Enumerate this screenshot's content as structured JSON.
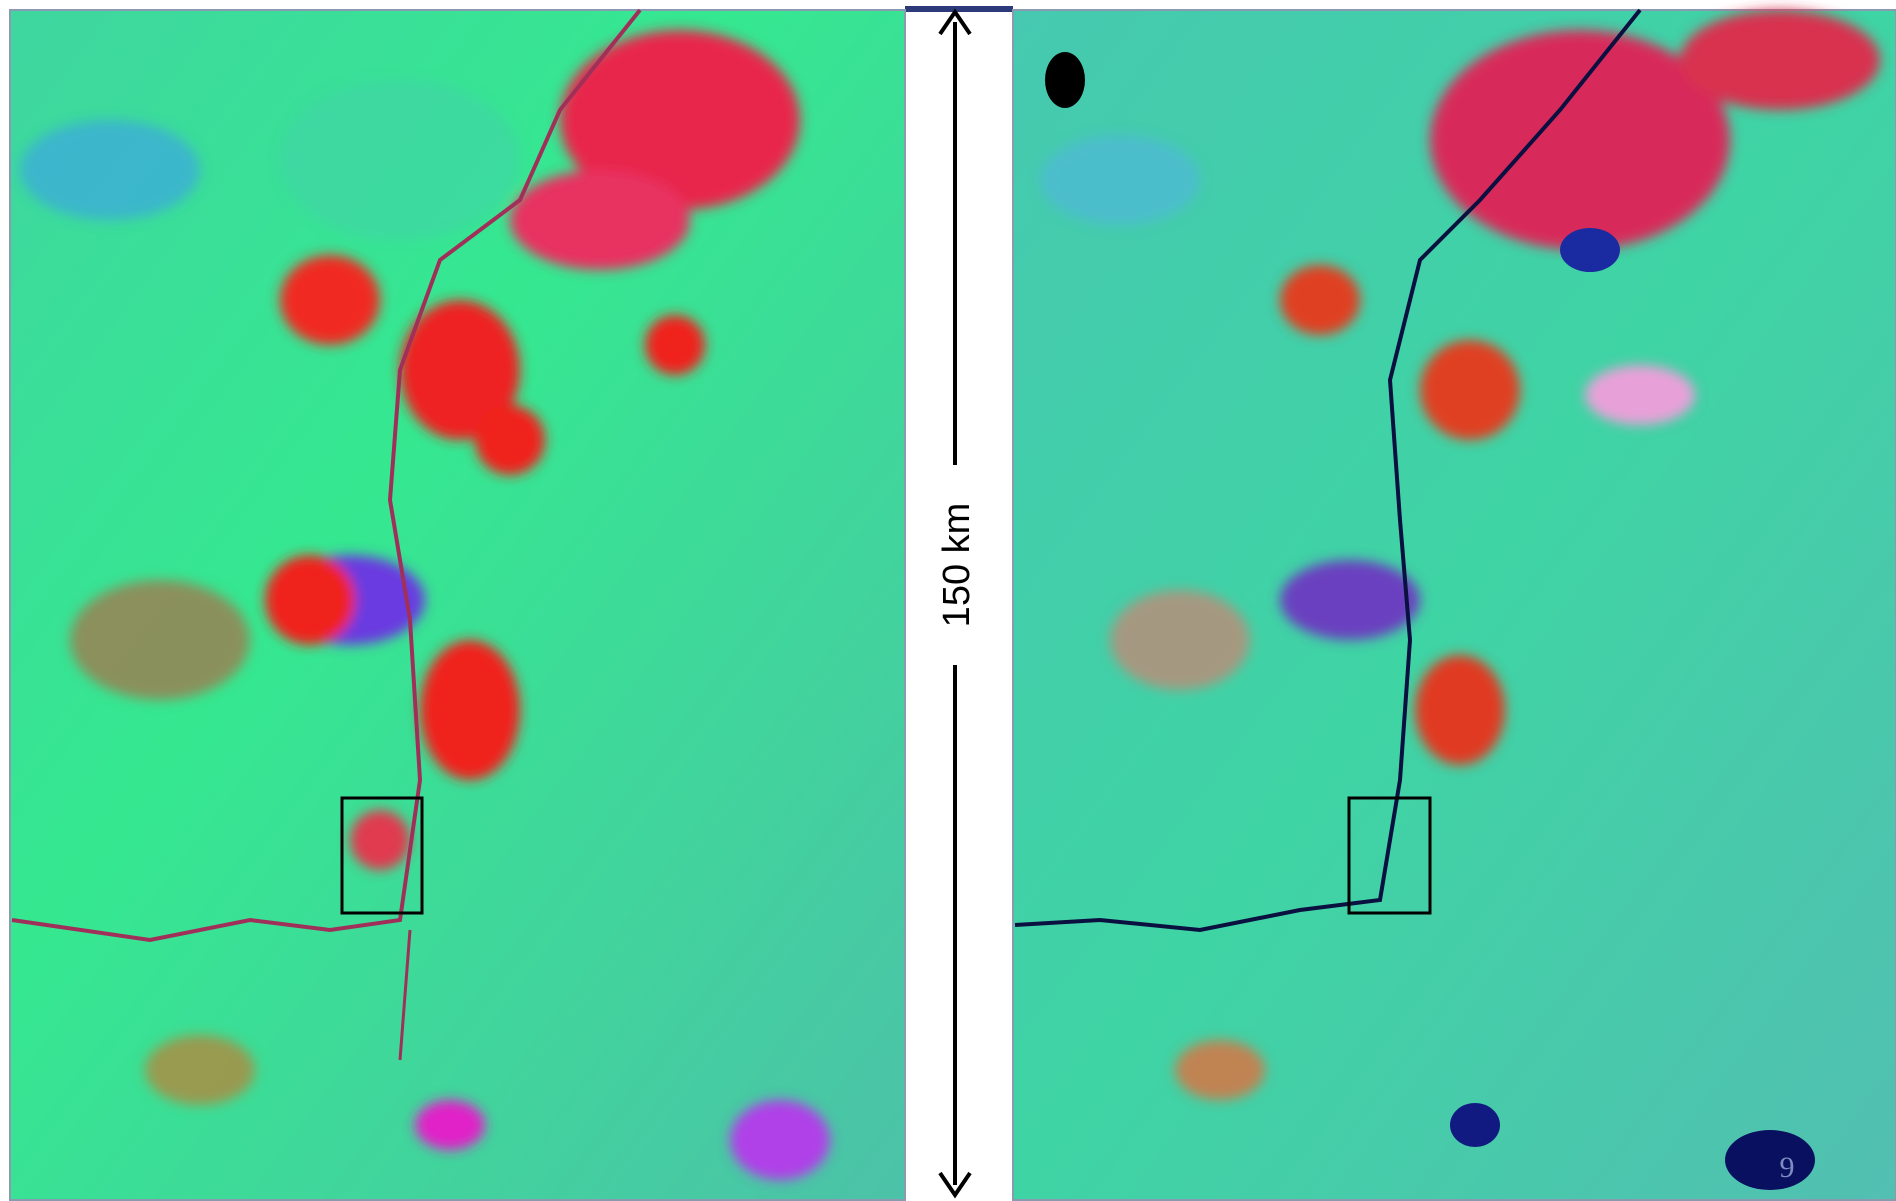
{
  "scale_label": "150 km",
  "page_number": "9"
}
